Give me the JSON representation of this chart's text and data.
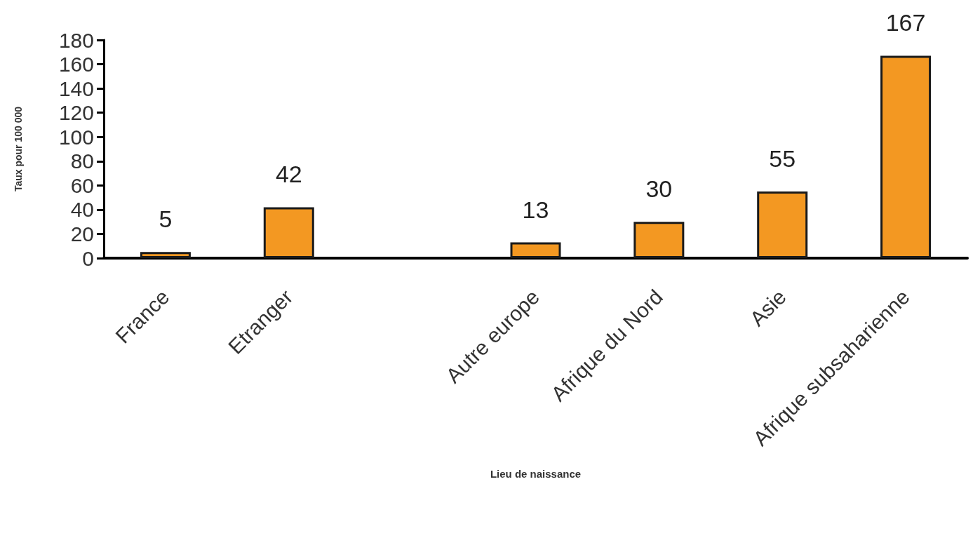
{
  "chart_data": {
    "type": "bar",
    "xlabel": "Lieu de naissance",
    "ylabel": "Taux pour 100 000",
    "categories": [
      "France",
      "Etranger",
      null,
      "Autre europe",
      "Afrique du Nord",
      "Asie",
      "Afrique subsaharienne"
    ],
    "values": [
      5,
      42,
      null,
      13,
      30,
      55,
      167
    ],
    "color": "#f39822",
    "ylim": [
      0,
      180
    ],
    "yticks": [
      0,
      20,
      40,
      60,
      80,
      100,
      120,
      140,
      160,
      180
    ],
    "grid": false,
    "data_labels": true
  }
}
